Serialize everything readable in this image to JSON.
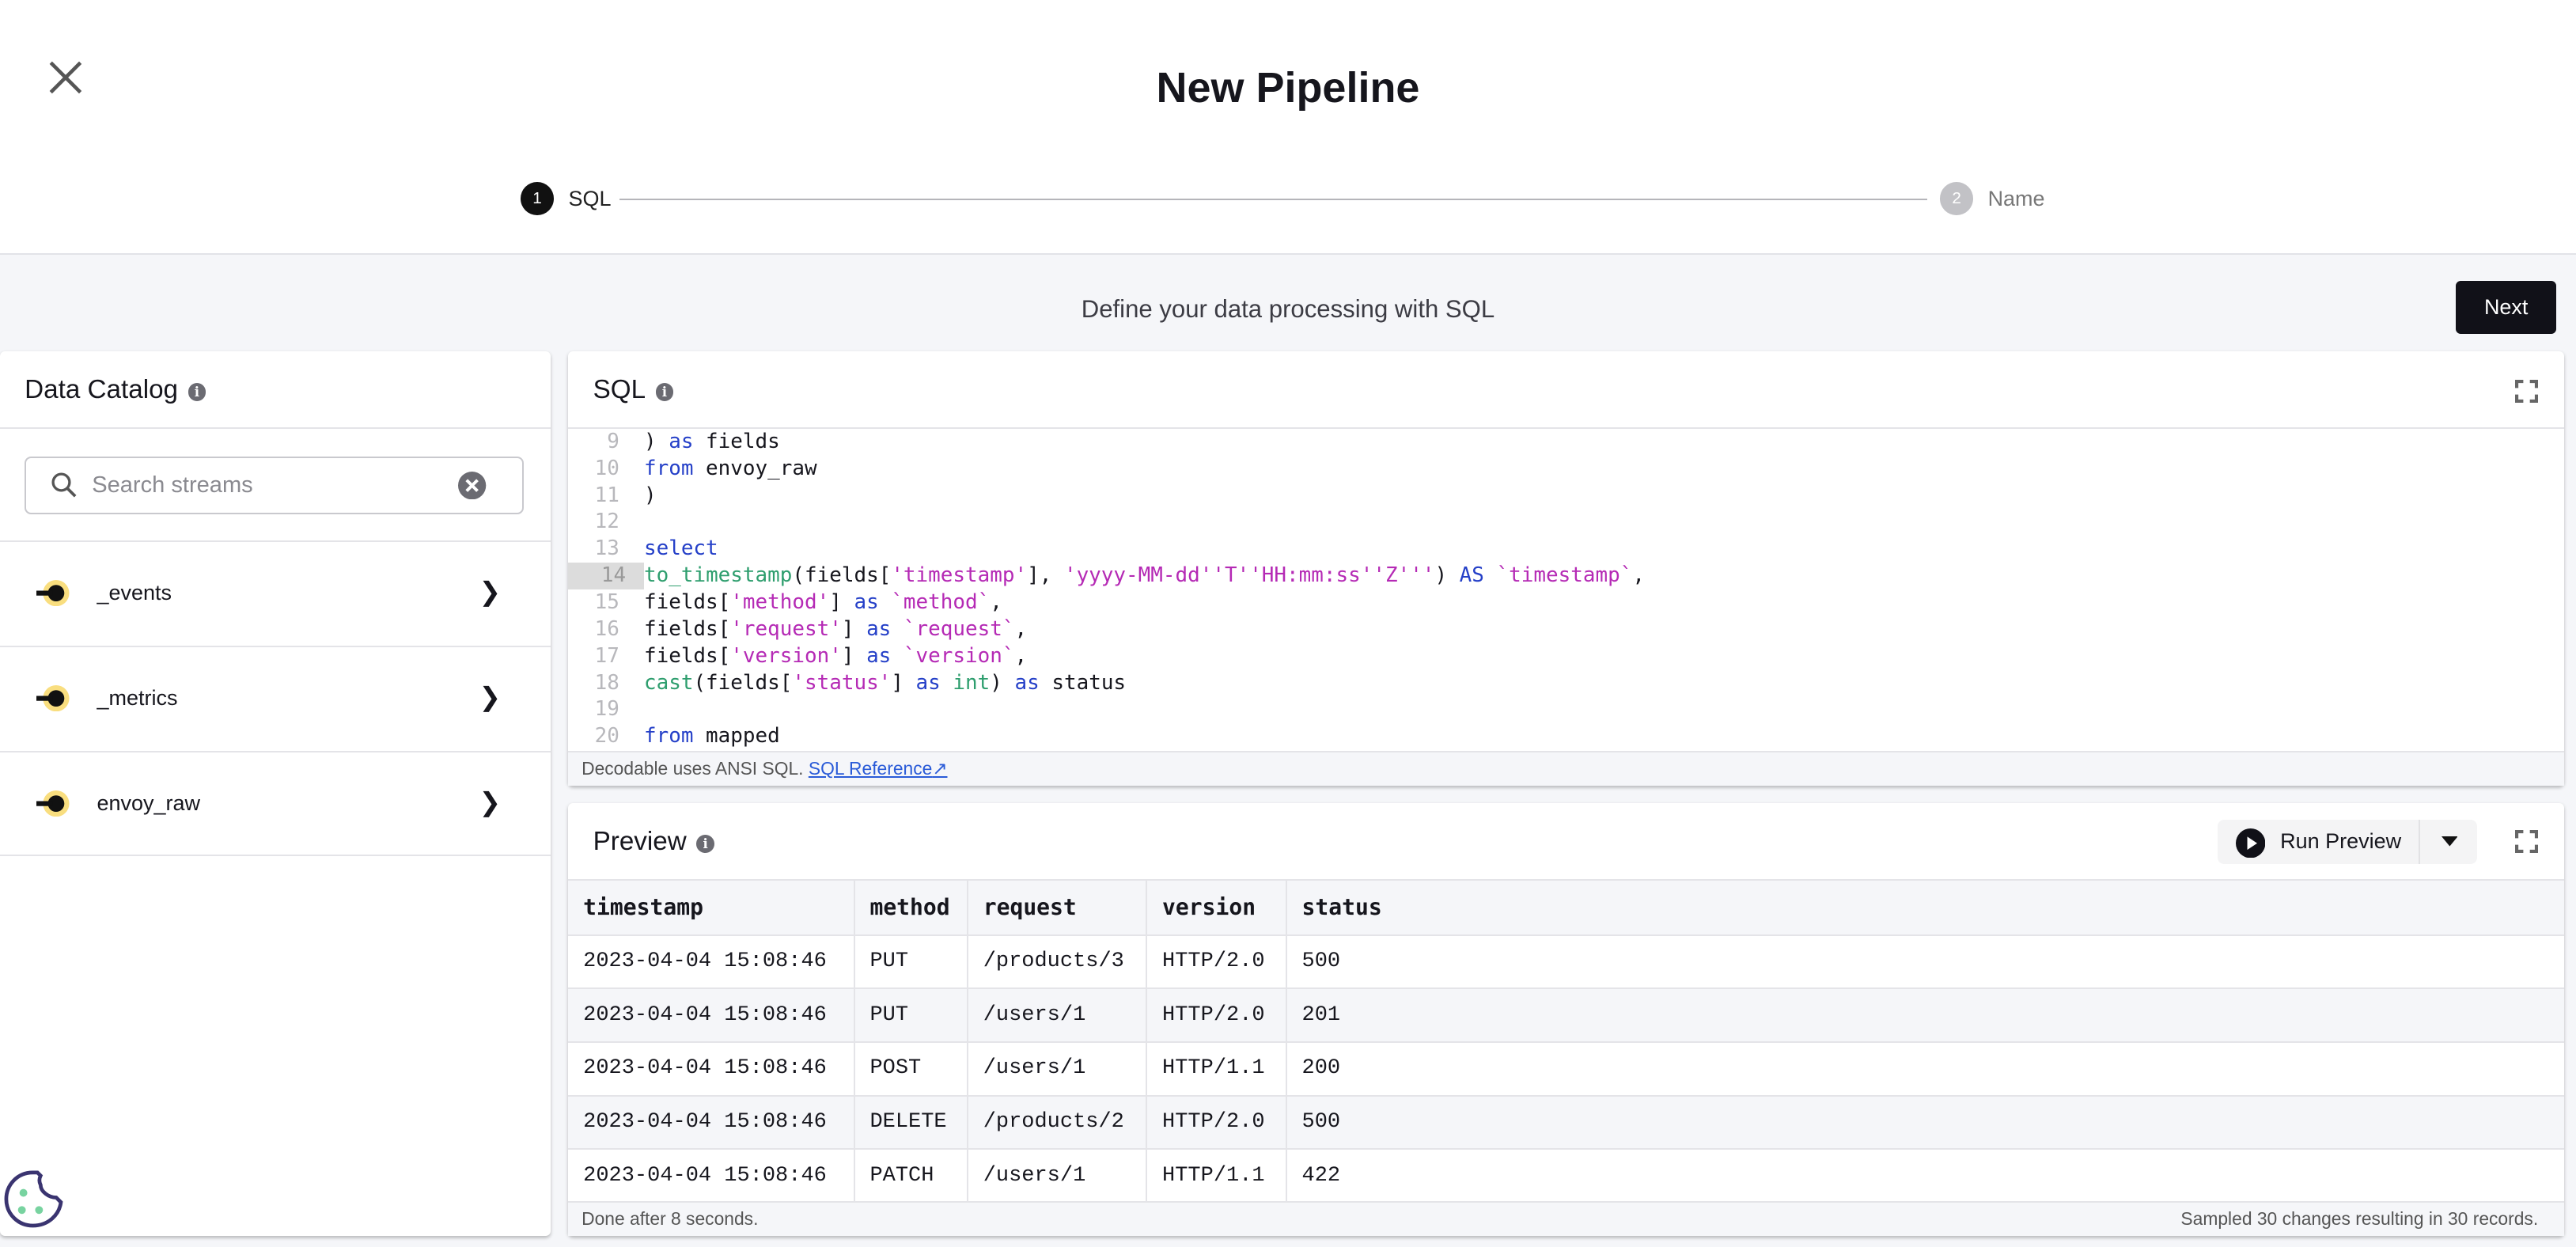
{
  "header": {
    "title": "New Pipeline",
    "close_icon": "close-icon"
  },
  "stepper": {
    "steps": [
      {
        "number": "1",
        "label": "SQL",
        "active": true
      },
      {
        "number": "2",
        "label": "Name",
        "active": false
      }
    ]
  },
  "subheader": {
    "text": "Define your data processing with SQL",
    "next_label": "Next"
  },
  "catalog": {
    "title": "Data Catalog",
    "search_placeholder": "Search streams",
    "streams": [
      "_events",
      "_metrics",
      "envoy_raw"
    ]
  },
  "sql": {
    "title": "SQL",
    "active_line": 14,
    "footer_text": "Decodable uses ANSI SQL.",
    "footer_link": "SQL Reference",
    "lines": [
      {
        "n": "9",
        "html": ") <span class='kw'>as</span> fields"
      },
      {
        "n": "10",
        "html": "<span class='kw'>from</span> envoy_raw"
      },
      {
        "n": "11",
        "html": ")"
      },
      {
        "n": "12",
        "html": ""
      },
      {
        "n": "13",
        "html": "<span class='kw'>select</span>"
      },
      {
        "n": "14",
        "html": "<span class='fn'>to_timestamp</span>(fields[<span class='str'>'timestamp'</span>], <span class='str'>'yyyy-MM-dd''T''HH:mm:ss''Z'''</span>) <span class='kw'>AS</span> <span class='str'>`timestamp`</span>,"
      },
      {
        "n": "15",
        "html": "fields[<span class='str'>'method'</span>] <span class='kw'>as</span> <span class='str'>`method`</span>,"
      },
      {
        "n": "16",
        "html": "fields[<span class='str'>'request'</span>] <span class='kw'>as</span> <span class='str'>`request`</span>,"
      },
      {
        "n": "17",
        "html": "fields[<span class='str'>'version'</span>] <span class='kw'>as</span> <span class='str'>`version`</span>,"
      },
      {
        "n": "18",
        "html": "<span class='fn'>cast</span>(fields[<span class='str'>'status'</span>] <span class='kw'>as</span> <span class='fn'>int</span>) <span class='kw'>as</span> status"
      },
      {
        "n": "19",
        "html": ""
      },
      {
        "n": "20",
        "html": "<span class='kw'>from</span> mapped"
      }
    ]
  },
  "preview": {
    "title": "Preview",
    "run_label": "Run Preview",
    "columns": [
      "timestamp",
      "method",
      "request",
      "version",
      "status"
    ],
    "rows": [
      [
        "2023-04-04 15:08:46",
        "PUT",
        "/products/3",
        "HTTP/2.0",
        "500"
      ],
      [
        "2023-04-04 15:08:46",
        "PUT",
        "/users/1",
        "HTTP/2.0",
        "201"
      ],
      [
        "2023-04-04 15:08:46",
        "POST",
        "/users/1",
        "HTTP/1.1",
        "200"
      ],
      [
        "2023-04-04 15:08:46",
        "DELETE",
        "/products/2",
        "HTTP/2.0",
        "500"
      ],
      [
        "2023-04-04 15:08:46",
        "PATCH",
        "/users/1",
        "HTTP/1.1",
        "422"
      ]
    ],
    "footer_left": "Done after 8 seconds.",
    "footer_right": "Sampled 30 changes resulting in 30 records."
  },
  "colors": {
    "keyword": "#2540c8",
    "string": "#b52ab5",
    "function": "#2e9e6e",
    "stream_icon": "#f9de7f",
    "cookie": "#3a3470",
    "cookie_dots": "#78d3a0"
  }
}
